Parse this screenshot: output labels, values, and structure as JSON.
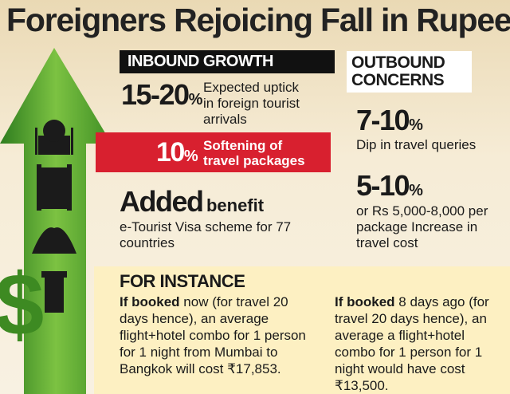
{
  "title": "Foreigners Rejoicing Fall in Rupee",
  "inbound": {
    "heading": "INBOUND GROWTH",
    "uptick": {
      "figure": "15-20",
      "unit": "%",
      "text": "Expected uptick in foreign tourist arrivals"
    },
    "softening": {
      "figure": "10",
      "unit": "%",
      "text": "Softening of travel packages"
    },
    "added": {
      "lead": "Added",
      "word": "benefit",
      "text": "e-Tourist Visa scheme for 77 countries"
    }
  },
  "outbound": {
    "heading": "OUTBOUND CONCERNS",
    "stats": [
      {
        "figure": "7-10",
        "unit": "%",
        "text": "Dip in travel queries"
      },
      {
        "figure": "5-10",
        "unit": "%",
        "text": "or Rs 5,000-8,000 per package Increase in travel cost"
      }
    ]
  },
  "instance": {
    "heading": "FOR INSTANCE",
    "left": {
      "lead": "If booked",
      "text": "now (for travel 20 days hence), an average flight+hotel combo for 1 person for 1 night from Mumbai to Bangkok will cost ₹17,853."
    },
    "right": {
      "lead": "If booked",
      "text": "8 days ago (for travel 20 days hence), an average a flight+hotel combo for 1 person for 1 night would have cost ₹13,500."
    }
  }
}
